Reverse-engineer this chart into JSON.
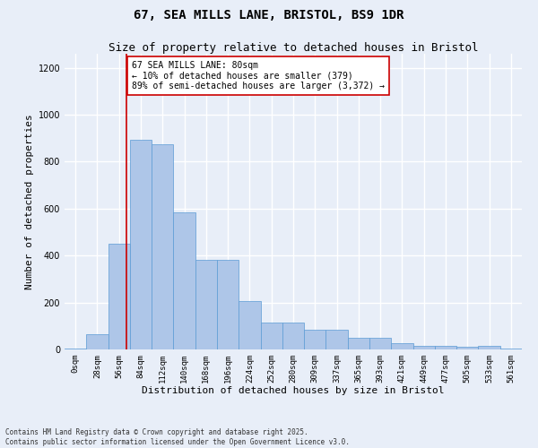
{
  "title_line1": "67, SEA MILLS LANE, BRISTOL, BS9 1DR",
  "title_line2": "Size of property relative to detached houses in Bristol",
  "xlabel": "Distribution of detached houses by size in Bristol",
  "ylabel": "Number of detached properties",
  "bar_labels": [
    "0sqm",
    "28sqm",
    "56sqm",
    "84sqm",
    "112sqm",
    "140sqm",
    "168sqm",
    "196sqm",
    "224sqm",
    "252sqm",
    "280sqm",
    "309sqm",
    "337sqm",
    "365sqm",
    "393sqm",
    "421sqm",
    "449sqm",
    "477sqm",
    "505sqm",
    "533sqm",
    "561sqm"
  ],
  "bar_values": [
    5,
    65,
    450,
    895,
    875,
    585,
    380,
    380,
    205,
    115,
    115,
    85,
    85,
    50,
    50,
    25,
    15,
    15,
    10,
    15,
    2
  ],
  "bar_color": "#aec6e8",
  "bar_edge_color": "#5b9bd5",
  "vline_x": 2.857,
  "vline_color": "#cc0000",
  "annotation_text": "67 SEA MILLS LANE: 80sqm\n← 10% of detached houses are smaller (379)\n89% of semi-detached houses are larger (3,372) →",
  "annotation_box_color": "#ffffff",
  "annotation_box_edge": "#cc0000",
  "ylim": [
    0,
    1260
  ],
  "yticks": [
    0,
    200,
    400,
    600,
    800,
    1000,
    1200
  ],
  "footer_line1": "Contains HM Land Registry data © Crown copyright and database right 2025.",
  "footer_line2": "Contains public sector information licensed under the Open Government Licence v3.0.",
  "bg_color": "#e8eef8",
  "plot_bg_color": "#e8eef8",
  "grid_color": "#ffffff",
  "title_fontsize": 10,
  "subtitle_fontsize": 9,
  "tick_fontsize": 6.5,
  "ylabel_fontsize": 8,
  "xlabel_fontsize": 8,
  "annotation_fontsize": 7
}
